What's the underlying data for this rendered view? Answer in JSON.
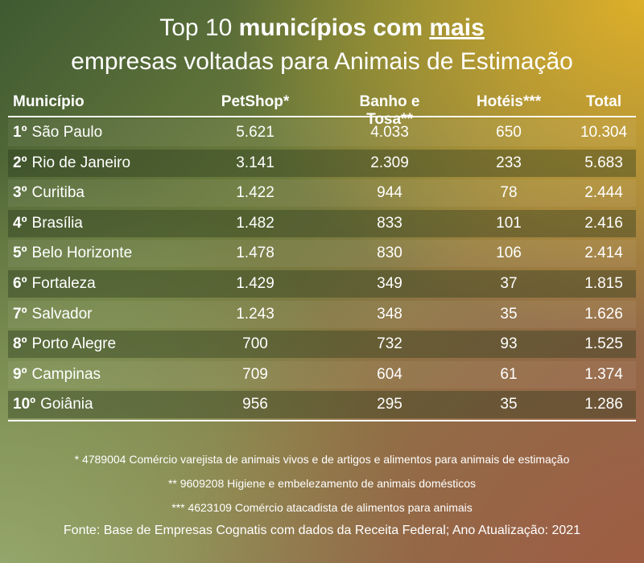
{
  "title": {
    "line1_pre": "Top 10 ",
    "line1_bold": "municípios com ",
    "line1_underline": "mais",
    "line2": "empresas voltadas para Animais de Estimação"
  },
  "chart_data": {
    "type": "table",
    "columns": [
      "Município",
      "PetShop*",
      "Banho e Tosa**",
      "Hotéis***",
      "Total"
    ],
    "rows": [
      {
        "rank": "1º",
        "municipio": "São Paulo",
        "petshop": "5.621",
        "banho_tosa": "4.033",
        "hoteis": "650",
        "total": "10.304"
      },
      {
        "rank": "2º",
        "municipio": "Rio de Janeiro",
        "petshop": "3.141",
        "banho_tosa": "2.309",
        "hoteis": "233",
        "total": "5.683"
      },
      {
        "rank": "3º",
        "municipio": "Curitiba",
        "petshop": "1.422",
        "banho_tosa": "944",
        "hoteis": "78",
        "total": "2.444"
      },
      {
        "rank": "4º",
        "municipio": "Brasília",
        "petshop": "1.482",
        "banho_tosa": "833",
        "hoteis": "101",
        "total": "2.416"
      },
      {
        "rank": "5º",
        "municipio": "Belo Horizonte",
        "petshop": "1.478",
        "banho_tosa": "830",
        "hoteis": "106",
        "total": "2.414"
      },
      {
        "rank": "6º",
        "municipio": "Fortaleza",
        "petshop": "1.429",
        "banho_tosa": "349",
        "hoteis": "37",
        "total": "1.815"
      },
      {
        "rank": "7º",
        "municipio": "Salvador",
        "petshop": "1.243",
        "banho_tosa": "348",
        "hoteis": "35",
        "total": "1.626"
      },
      {
        "rank": "8º",
        "municipio": "Porto Alegre",
        "petshop": "700",
        "banho_tosa": "732",
        "hoteis": "93",
        "total": "1.525"
      },
      {
        "rank": "9º",
        "municipio": "Campinas",
        "petshop": "709",
        "banho_tosa": "604",
        "hoteis": "61",
        "total": "1.374"
      },
      {
        "rank": "10º",
        "municipio": "Goiânia",
        "petshop": "956",
        "banho_tosa": "295",
        "hoteis": "35",
        "total": "1.286"
      }
    ]
  },
  "notes": [
    "* 4789004  Comércio varejista de animais vivos e de artigos e alimentos para animais de estimação",
    "** 9609208 Higiene e embelezamento de animais domésticos",
    "*** 4623109 Comércio atacadista de alimentos para animais"
  ],
  "source": "Fonte:  Base de Empresas Cognatis com dados da Receita Federal; Ano Atualização: 2021"
}
